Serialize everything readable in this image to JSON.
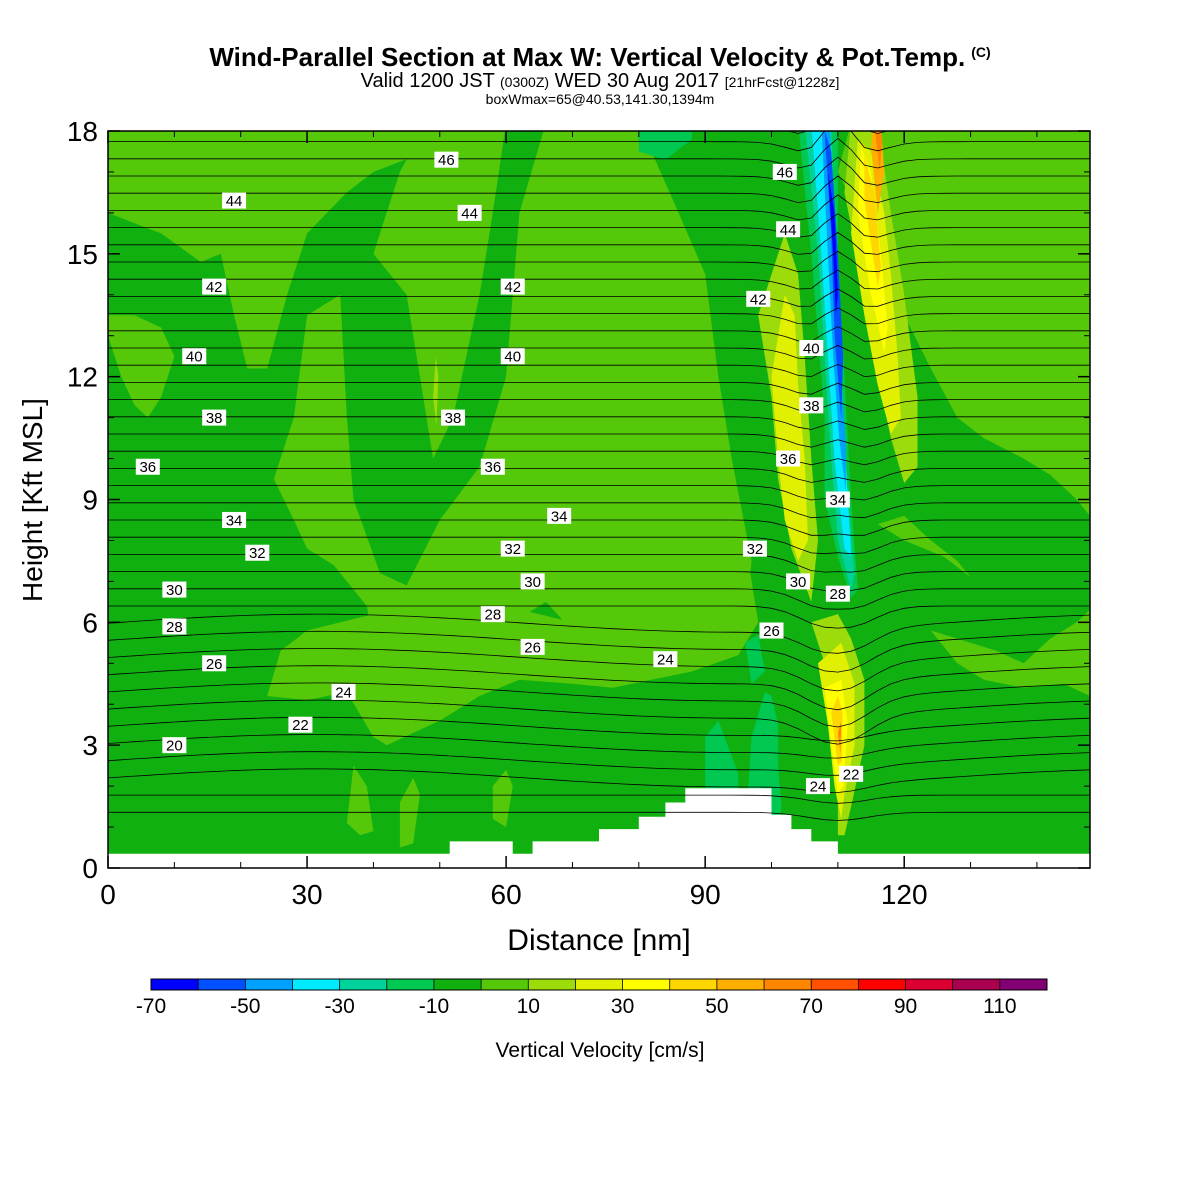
{
  "title": {
    "main": "Wind-Parallel Section at Max W: Vertical Velocity & Pot.Temp.",
    "copyright": "(C)",
    "valid_prefix": "Valid 1200 JST",
    "valid_utc": "(0300Z)",
    "valid_date": "WED 30 Aug 2017",
    "forecast": "[21hrFcst@1228z]",
    "boxwmax": "boxWmax=65@40.53,141.30,1394m"
  },
  "colors": {
    "background_field": "#11b011",
    "terrain": "#ffffff",
    "contour": "#000000"
  },
  "chart_data": {
    "type": "heatmap",
    "xlabel": "Distance [nm]",
    "ylabel": "Height [Kft MSL]",
    "xlim": [
      0,
      148
    ],
    "ylim": [
      0,
      18
    ],
    "x_ticks": [
      "0",
      "30",
      "60",
      "90",
      "120"
    ],
    "y_ticks": [
      "0",
      "3",
      "6",
      "9",
      "12",
      "15",
      "18"
    ],
    "field": "Vertical Velocity [cm/s]",
    "field_background_value": 0,
    "colorbar": {
      "label": "Vertical Velocity [cm/s]",
      "levels": [
        -70,
        -60,
        -50,
        -40,
        -30,
        -20,
        -10,
        0,
        10,
        20,
        30,
        40,
        50,
        60,
        70,
        80,
        90,
        100,
        110,
        120
      ],
      "tick_labels": [
        "-70",
        "-50",
        "-30",
        "-10",
        "10",
        "30",
        "50",
        "70",
        "90",
        "110"
      ],
      "colors": [
        "#0000ff",
        "#0050ff",
        "#00a0ff",
        "#00ebff",
        "#00d29b",
        "#00c850",
        "#11b011",
        "#55c80a",
        "#9bdc0a",
        "#e1f000",
        "#ffff00",
        "#ffd700",
        "#ffaf00",
        "#ff8700",
        "#ff5000",
        "#ff0000",
        "#dc0032",
        "#aa0050",
        "#820073"
      ]
    },
    "contour_variable": "Potential Temperature (deg C)",
    "contour_labels": [
      {
        "value": "46",
        "x": 51,
        "y": 17.3
      },
      {
        "value": "46",
        "x": 102,
        "y": 17.0
      },
      {
        "value": "44",
        "x": 19,
        "y": 16.3
      },
      {
        "value": "44",
        "x": 54.5,
        "y": 16.0
      },
      {
        "value": "44",
        "x": 102.5,
        "y": 15.6
      },
      {
        "value": "42",
        "x": 16,
        "y": 14.2
      },
      {
        "value": "42",
        "x": 61,
        "y": 14.2
      },
      {
        "value": "42",
        "x": 98,
        "y": 13.9
      },
      {
        "value": "40",
        "x": 13,
        "y": 12.5
      },
      {
        "value": "40",
        "x": 61,
        "y": 12.5
      },
      {
        "value": "40",
        "x": 106,
        "y": 12.7
      },
      {
        "value": "38",
        "x": 16,
        "y": 11.0
      },
      {
        "value": "38",
        "x": 52,
        "y": 11.0
      },
      {
        "value": "38",
        "x": 106,
        "y": 11.3
      },
      {
        "value": "36",
        "x": 6,
        "y": 9.8
      },
      {
        "value": "36",
        "x": 58,
        "y": 9.8
      },
      {
        "value": "36",
        "x": 102.5,
        "y": 10.0
      },
      {
        "value": "34",
        "x": 19,
        "y": 8.5
      },
      {
        "value": "34",
        "x": 68,
        "y": 8.6
      },
      {
        "value": "34",
        "x": 110,
        "y": 9.0
      },
      {
        "value": "32",
        "x": 22.5,
        "y": 7.7
      },
      {
        "value": "32",
        "x": 61,
        "y": 7.8
      },
      {
        "value": "32",
        "x": 97.5,
        "y": 7.8
      },
      {
        "value": "30",
        "x": 10,
        "y": 6.8
      },
      {
        "value": "30",
        "x": 64,
        "y": 7.0
      },
      {
        "value": "30",
        "x": 104,
        "y": 7.0
      },
      {
        "value": "28",
        "x": 10,
        "y": 5.9
      },
      {
        "value": "28",
        "x": 58,
        "y": 6.2
      },
      {
        "value": "28",
        "x": 110,
        "y": 6.7
      },
      {
        "value": "26",
        "x": 16,
        "y": 5.0
      },
      {
        "value": "26",
        "x": 64,
        "y": 5.4
      },
      {
        "value": "26",
        "x": 100,
        "y": 5.8
      },
      {
        "value": "24",
        "x": 35.5,
        "y": 4.3
      },
      {
        "value": "24",
        "x": 84,
        "y": 5.1
      },
      {
        "value": "24",
        "x": 107,
        "y": 2.0
      },
      {
        "value": "22",
        "x": 29,
        "y": 3.5
      },
      {
        "value": "22",
        "x": 112,
        "y": 2.3
      },
      {
        "value": "20",
        "x": 10,
        "y": 3.0
      }
    ],
    "terrain_profile": [
      [
        0,
        0.35
      ],
      [
        51.5,
        0.35
      ],
      [
        51.5,
        0.65
      ],
      [
        61,
        0.65
      ],
      [
        61,
        0.35
      ],
      [
        64,
        0.35
      ],
      [
        64,
        0.65
      ],
      [
        74,
        0.65
      ],
      [
        74,
        0.95
      ],
      [
        80,
        0.95
      ],
      [
        80,
        1.25
      ],
      [
        84,
        1.25
      ],
      [
        84,
        1.6
      ],
      [
        87,
        1.6
      ],
      [
        87,
        1.95
      ],
      [
        100,
        1.95
      ],
      [
        100,
        1.3
      ],
      [
        103,
        1.3
      ],
      [
        103,
        0.95
      ],
      [
        106,
        0.95
      ],
      [
        106,
        0.65
      ],
      [
        110,
        0.65
      ],
      [
        110,
        0.35
      ],
      [
        148,
        0.35
      ]
    ]
  }
}
